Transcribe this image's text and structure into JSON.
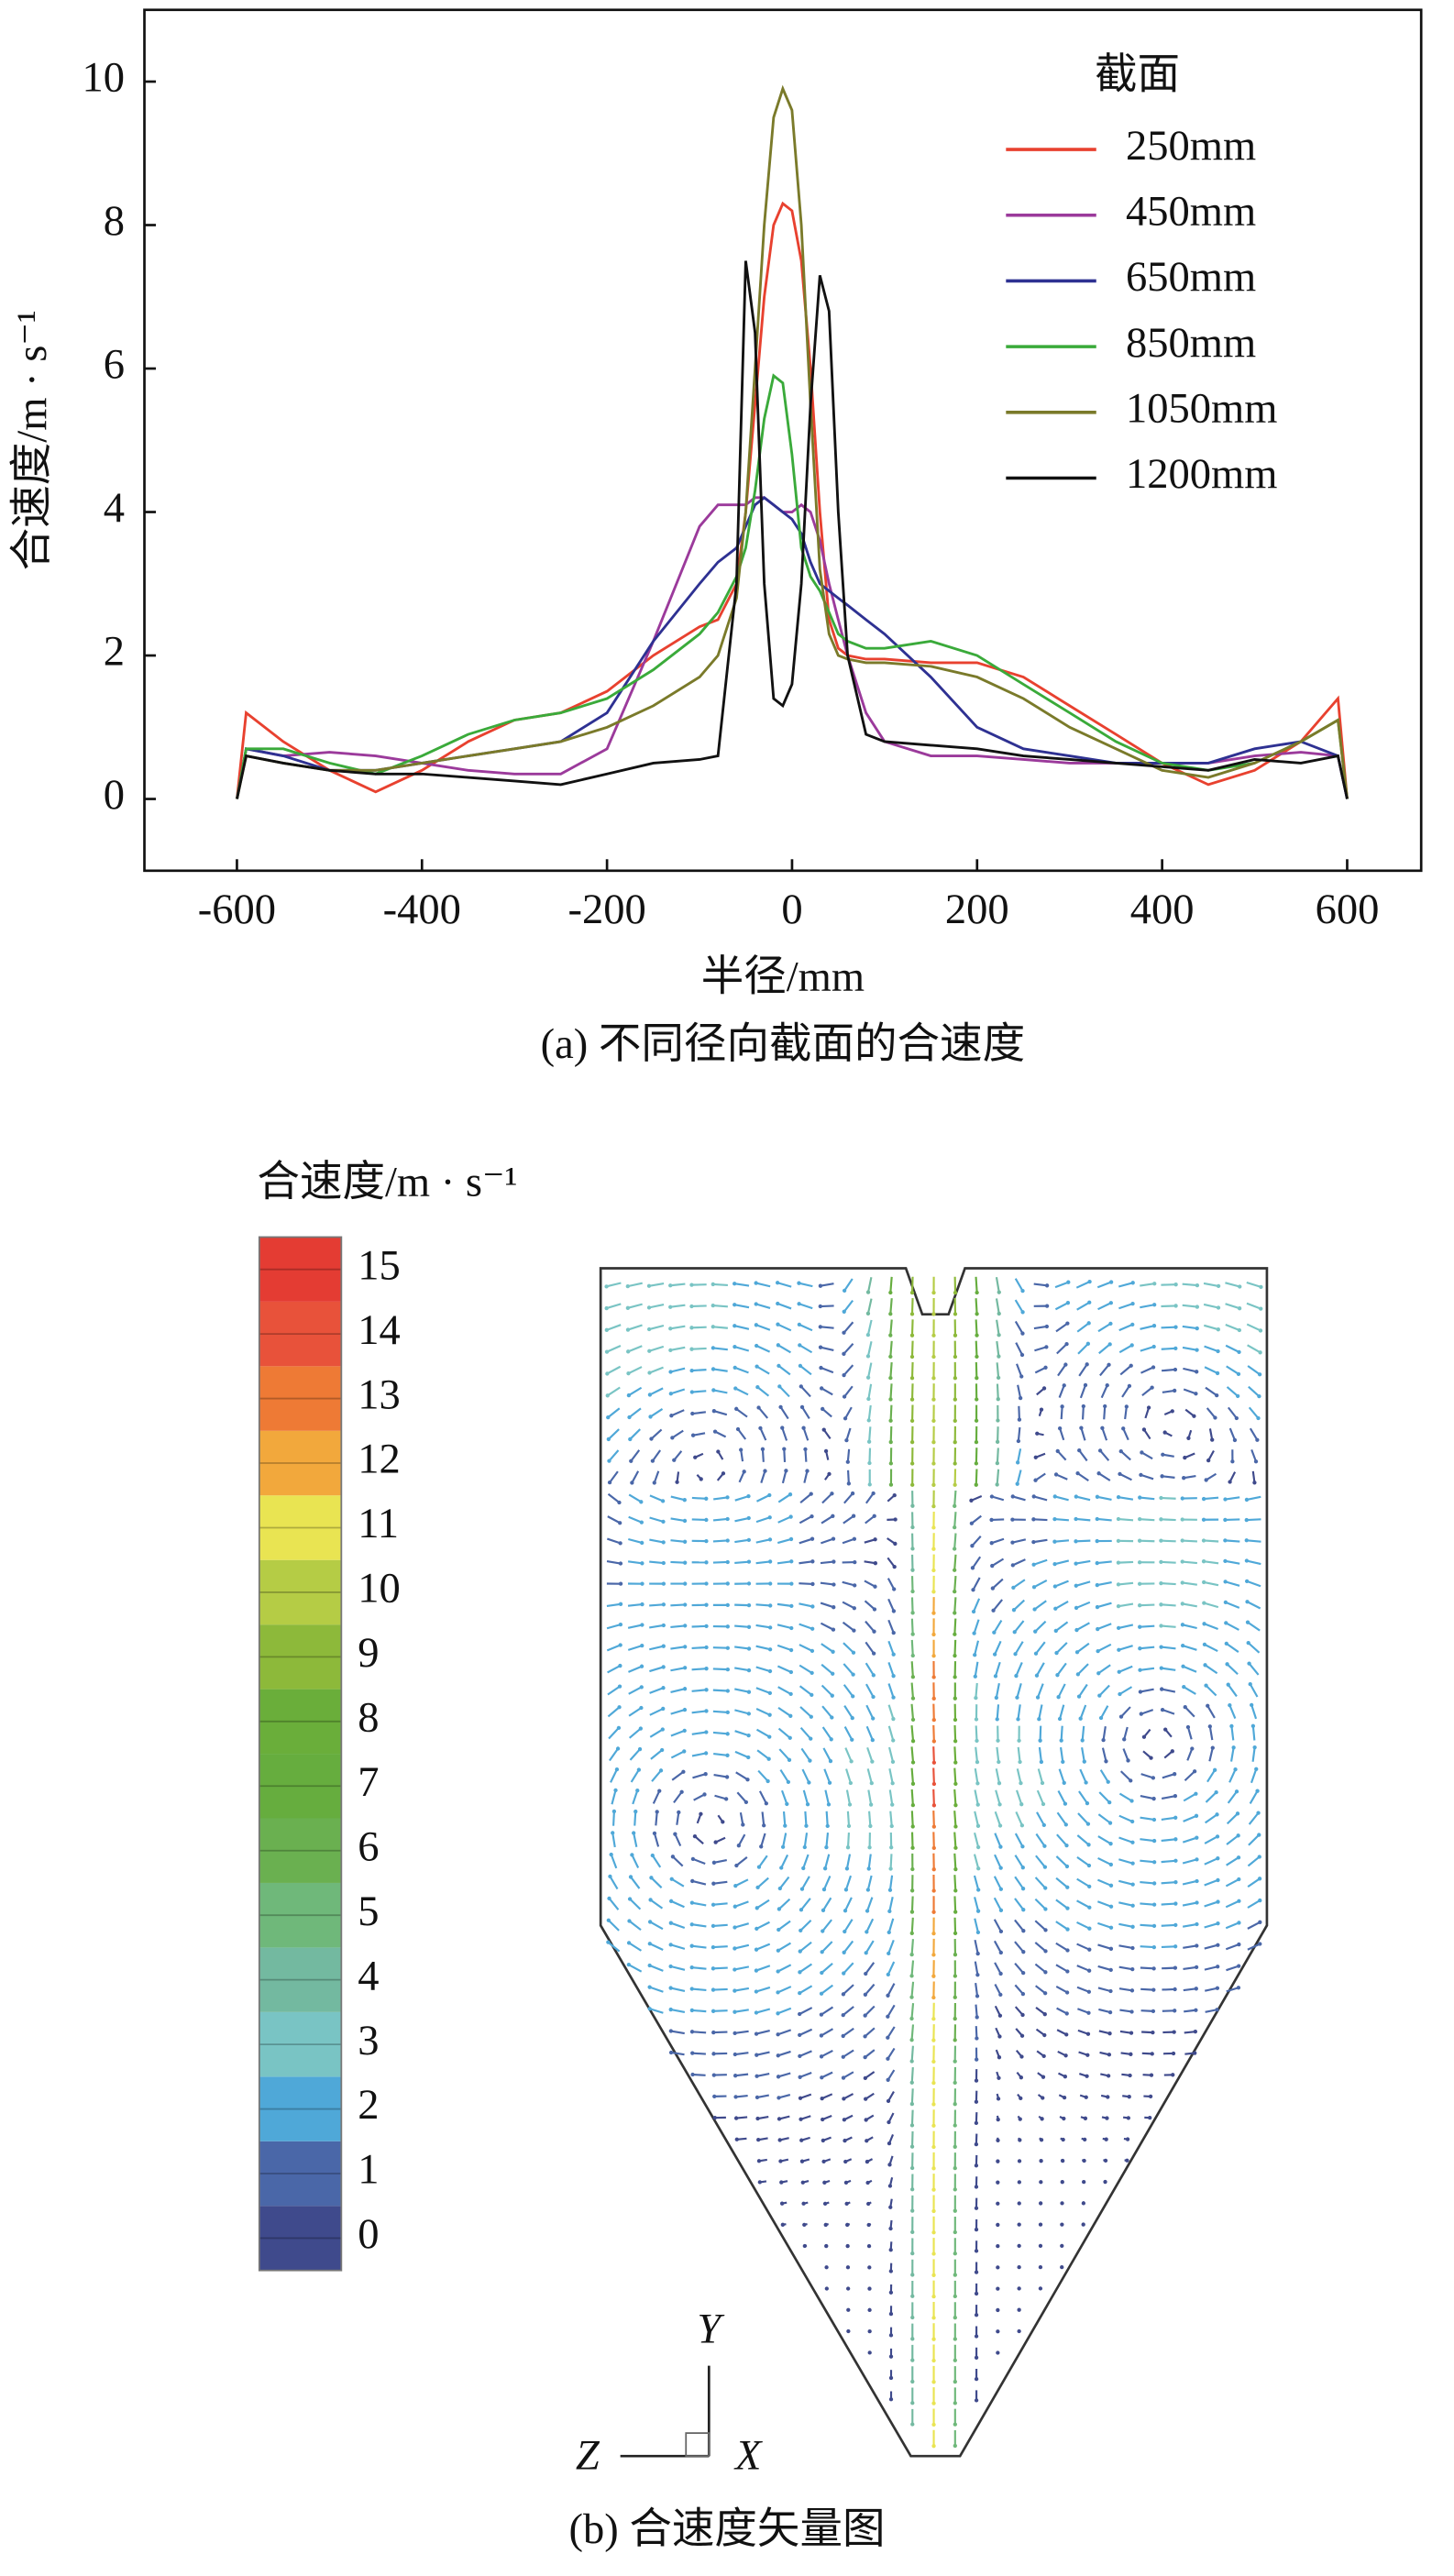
{
  "chart_data": [
    {
      "type": "line",
      "ylabel": "合速度/m · s⁻¹",
      "xlabel": "半径/mm",
      "caption": "(a) 不同径向截面的合速度",
      "legend_title": "截面",
      "legend": "upper right",
      "xlim": [
        -700,
        680
      ],
      "ylim": [
        -1,
        11
      ],
      "xticks": [
        -600,
        -400,
        -200,
        0,
        200,
        400,
        600
      ],
      "yticks": [
        0,
        2,
        4,
        6,
        8,
        10
      ],
      "x": [
        -600,
        -590,
        -550,
        -500,
        -450,
        -400,
        -350,
        -300,
        -250,
        -200,
        -150,
        -100,
        -80,
        -60,
        -50,
        -40,
        -30,
        -20,
        -10,
        0,
        10,
        20,
        30,
        40,
        50,
        60,
        80,
        100,
        150,
        200,
        250,
        300,
        350,
        400,
        450,
        500,
        550,
        590,
        600
      ],
      "series": [
        {
          "name": "250mm",
          "color": "#e8412f",
          "values": [
            0,
            1.2,
            0.8,
            0.4,
            0.1,
            0.4,
            0.8,
            1.1,
            1.2,
            1.5,
            2.0,
            2.4,
            2.5,
            3.0,
            4.0,
            5.5,
            7.0,
            8.0,
            8.3,
            8.2,
            7.5,
            6.0,
            4.0,
            2.5,
            2.1,
            2.0,
            1.95,
            1.95,
            1.9,
            1.9,
            1.7,
            1.3,
            0.9,
            0.5,
            0.2,
            0.4,
            0.8,
            1.4,
            0
          ]
        },
        {
          "name": "450mm",
          "color": "#9b3a9b",
          "values": [
            0,
            0.7,
            0.6,
            0.65,
            0.6,
            0.5,
            0.4,
            0.35,
            0.35,
            0.7,
            2.2,
            3.8,
            4.1,
            4.1,
            4.1,
            4.2,
            4.2,
            4.1,
            4.0,
            4.0,
            4.1,
            4.0,
            3.6,
            3.0,
            2.5,
            2.0,
            1.2,
            0.8,
            0.6,
            0.6,
            0.55,
            0.5,
            0.5,
            0.5,
            0.5,
            0.6,
            0.65,
            0.6,
            0
          ]
        },
        {
          "name": "650mm",
          "color": "#2e3192",
          "values": [
            0,
            0.7,
            0.6,
            0.4,
            0.4,
            0.5,
            0.6,
            0.7,
            0.8,
            1.2,
            2.2,
            3.0,
            3.3,
            3.5,
            3.8,
            4.1,
            4.2,
            4.1,
            4.0,
            3.9,
            3.7,
            3.3,
            3.0,
            2.9,
            2.8,
            2.7,
            2.5,
            2.3,
            1.7,
            1.0,
            0.7,
            0.6,
            0.5,
            0.5,
            0.5,
            0.7,
            0.8,
            0.6,
            0
          ]
        },
        {
          "name": "850mm",
          "color": "#3aaa3a",
          "values": [
            0,
            0.7,
            0.7,
            0.5,
            0.35,
            0.6,
            0.9,
            1.1,
            1.2,
            1.4,
            1.8,
            2.3,
            2.6,
            3.1,
            3.5,
            4.3,
            5.3,
            5.9,
            5.8,
            4.8,
            3.5,
            3.1,
            2.9,
            2.6,
            2.3,
            2.2,
            2.1,
            2.1,
            2.2,
            2.0,
            1.6,
            1.2,
            0.8,
            0.5,
            0.4,
            0.5,
            0.8,
            1.1,
            0
          ]
        },
        {
          "name": "1050mm",
          "color": "#7a7a2a",
          "values": [
            0,
            0.6,
            0.5,
            0.4,
            0.4,
            0.5,
            0.6,
            0.7,
            0.8,
            1.0,
            1.3,
            1.7,
            2.0,
            2.8,
            4.0,
            6.0,
            8.0,
            9.5,
            9.9,
            9.6,
            8.0,
            5.5,
            3.2,
            2.3,
            2.0,
            1.95,
            1.9,
            1.9,
            1.85,
            1.7,
            1.4,
            1.0,
            0.7,
            0.4,
            0.3,
            0.5,
            0.8,
            1.1,
            0
          ]
        },
        {
          "name": "1200mm",
          "color": "#111111",
          "values": [
            0,
            0.6,
            0.5,
            0.4,
            0.35,
            0.35,
            0.3,
            0.25,
            0.2,
            0.35,
            0.5,
            0.55,
            0.6,
            3.0,
            7.5,
            6.5,
            3.0,
            1.4,
            1.3,
            1.6,
            3.0,
            5.5,
            7.3,
            6.8,
            4.0,
            2.0,
            0.9,
            0.8,
            0.75,
            0.7,
            0.6,
            0.55,
            0.5,
            0.45,
            0.4,
            0.55,
            0.5,
            0.6,
            0
          ]
        }
      ]
    },
    {
      "type": "colorbar",
      "title": "合速度/m · s⁻¹",
      "caption": "(b) 合速度矢量图",
      "triad": {
        "y": "Y",
        "z": "Z",
        "x": "X"
      },
      "ylim": [
        -0.5,
        15.5
      ],
      "ticks": [
        0,
        1,
        2,
        3,
        4,
        5,
        6,
        7,
        8,
        9,
        10,
        11,
        12,
        13,
        14,
        15
      ],
      "colors": [
        "#3f4a8c",
        "#4a67a8",
        "#4fa8d8",
        "#79c4c4",
        "#73b9a0",
        "#6fb87a",
        "#6ab050",
        "#66ad3e",
        "#6aae3a",
        "#8db93a",
        "#b5cc45",
        "#e9e452",
        "#f2a83c",
        "#ee7a35",
        "#e8523a",
        "#e43c33"
      ]
    }
  ]
}
